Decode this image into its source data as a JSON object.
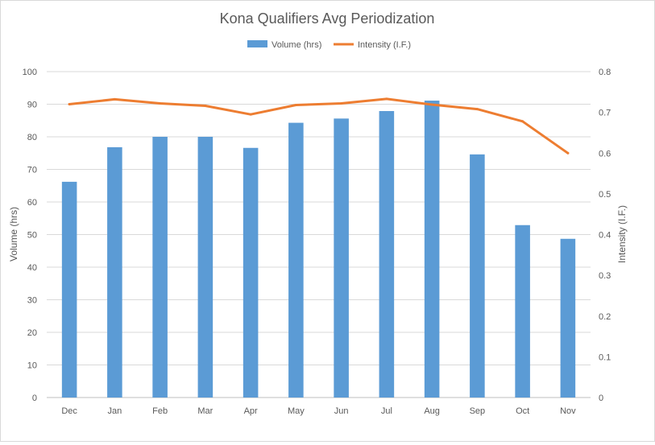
{
  "chart_data": {
    "type": "bar+line",
    "title": "Kona Qualifiers Avg Periodization",
    "categories": [
      "Dec",
      "Jan",
      "Feb",
      "Mar",
      "Apr",
      "May",
      "Jun",
      "Jul",
      "Aug",
      "Sep",
      "Oct",
      "Nov"
    ],
    "series": [
      {
        "name": "Volume (hrs)",
        "type": "bar",
        "axis": "left",
        "color": "#5b9bd5",
        "values": [
          66.2,
          76.8,
          80.0,
          80.0,
          76.6,
          84.3,
          85.6,
          87.9,
          91.1,
          74.6,
          52.9,
          48.7
        ]
      },
      {
        "name": "Intensity (I.F.)",
        "type": "line",
        "axis": "right",
        "color": "#ed7d31",
        "values": [
          0.72,
          0.732,
          0.722,
          0.716,
          0.695,
          0.718,
          0.722,
          0.733,
          0.719,
          0.708,
          0.678,
          0.6
        ]
      }
    ],
    "ylabel": "Volume (hrs)",
    "y2label": "Intensity (I.F.)",
    "ylim": [
      0,
      100
    ],
    "y2lim": [
      0,
      0.8
    ],
    "yticks": [
      "0",
      "10",
      "20",
      "30",
      "40",
      "50",
      "60",
      "70",
      "80",
      "90",
      "100"
    ],
    "y2ticks": [
      "0",
      "0.1",
      "0.2",
      "0.3",
      "0.4",
      "0.5",
      "0.6",
      "0.7",
      "0.8"
    ],
    "grid": true,
    "legend_position": "top-center"
  }
}
